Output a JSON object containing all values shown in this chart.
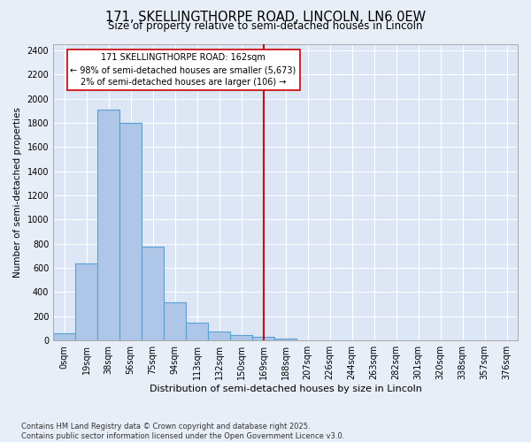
{
  "title_line1": "171, SKELLINGTHORPE ROAD, LINCOLN, LN6 0EW",
  "title_line2": "Size of property relative to semi-detached houses in Lincoln",
  "xlabel": "Distribution of semi-detached houses by size in Lincoln",
  "ylabel": "Number of semi-detached properties",
  "footer": "Contains HM Land Registry data © Crown copyright and database right 2025.\nContains public sector information licensed under the Open Government Licence v3.0.",
  "bin_labels": [
    "0sqm",
    "19sqm",
    "38sqm",
    "56sqm",
    "75sqm",
    "94sqm",
    "113sqm",
    "132sqm",
    "150sqm",
    "169sqm",
    "188sqm",
    "207sqm",
    "226sqm",
    "244sqm",
    "263sqm",
    "282sqm",
    "301sqm",
    "320sqm",
    "338sqm",
    "357sqm",
    "376sqm"
  ],
  "bar_values": [
    60,
    640,
    1910,
    1800,
    775,
    315,
    150,
    75,
    45,
    30,
    15,
    0,
    0,
    0,
    0,
    0,
    0,
    0,
    0,
    0,
    0
  ],
  "bar_color": "#aec6e8",
  "bar_edge_color": "#5a9fd4",
  "vline_x": 9.0,
  "vline_color": "#cc0000",
  "annotation_text": "171 SKELLINGTHORPE ROAD: 162sqm\n← 98% of semi-detached houses are smaller (5,673)\n2% of semi-detached houses are larger (106) →",
  "ylim": [
    0,
    2450
  ],
  "yticks": [
    0,
    200,
    400,
    600,
    800,
    1000,
    1200,
    1400,
    1600,
    1800,
    2000,
    2200,
    2400
  ],
  "bg_color": "#e8eef8",
  "plot_bg_color": "#dce6f5",
  "grid_color": "#ffffff",
  "title1_fontsize": 10.5,
  "title2_fontsize": 8.5,
  "xlabel_fontsize": 8,
  "ylabel_fontsize": 7.5,
  "tick_fontsize": 7,
  "footer_fontsize": 6,
  "annot_fontsize": 7
}
